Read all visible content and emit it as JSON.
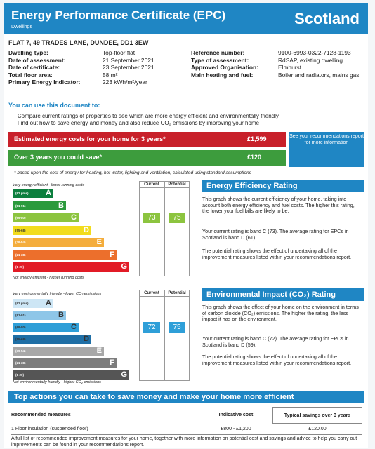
{
  "header": {
    "title": "Energy Performance Certificate (EPC)",
    "subtitle": "Dwellings",
    "country": "Scotland"
  },
  "address": "FLAT 7, 49 TRADES LANE, DUNDEE, DD1 3EW",
  "details_left": [
    {
      "label": "Dwelling type:",
      "value": "Top-floor flat"
    },
    {
      "label": "Date of assessment:",
      "value": "21 September 2021"
    },
    {
      "label": "Date of certificate:",
      "value": "23 September 2021"
    },
    {
      "label": "Total floor area:",
      "value": "58 m²"
    },
    {
      "label": "Primary Energy Indicator:",
      "value": "223 kWh/m²/year"
    }
  ],
  "details_right": [
    {
      "label": "Reference number:",
      "value": "9100-6993-0322-7128-1193"
    },
    {
      "label": "Type of assessment:",
      "value": "RdSAP, existing dwelling"
    },
    {
      "label": "Approved Organisation:",
      "value": "Elmhurst"
    },
    {
      "label": "Main heating and fuel:",
      "value": "Boiler and radiators, mains gas"
    }
  ],
  "use_doc": {
    "heading": "You can use this document to:",
    "bullets": [
      "Compare current ratings of properties to see which are more energy efficient and environmentally friendly",
      "Find out how to save energy and money and also reduce CO₂ emissions by improving your home"
    ]
  },
  "costs": {
    "estimated_label": "Estimated energy costs for your home for 3 years*",
    "estimated_value": "£1,599",
    "save_label": "Over 3 years you could save*",
    "save_value": "£120",
    "see_box": "See your recommendations report for more information",
    "basis": "* based upon the cost of energy for heating, hot water, lighting and ventilation, calculated using standard assumptions"
  },
  "colors": {
    "brand": "#1f86c4",
    "red": "#c8202a",
    "green": "#3d9c3d"
  },
  "efficiency": {
    "top_text": "Very energy efficient - lower running costs",
    "bottom_text": "Not energy efficient - higher running costs",
    "col_current": "Current",
    "col_potential": "Potential",
    "current": "73",
    "potential": "75",
    "current_band": "C",
    "potential_band": "C",
    "bands": [
      {
        "range": "(92 plus)",
        "letter": "A",
        "color": "#0c7f3e"
      },
      {
        "range": "(81-91)",
        "letter": "B",
        "color": "#2b9a3c"
      },
      {
        "range": "(69-80)",
        "letter": "C",
        "color": "#8cc43f"
      },
      {
        "range": "(55-68)",
        "letter": "D",
        "color": "#f2dc1d"
      },
      {
        "range": "(39-54)",
        "letter": "E",
        "color": "#f4ad3c"
      },
      {
        "range": "(21-38)",
        "letter": "F",
        "color": "#ec6f2c"
      },
      {
        "range": "(1-20)",
        "letter": "G",
        "color": "#e21b26"
      }
    ]
  },
  "environment": {
    "top_text": "Very environmentally friendly - lower CO₂ emissions",
    "bottom_text": "Not environmentally friendly - higher CO₂ emissions",
    "col_current": "Current",
    "col_potential": "Potential",
    "current": "72",
    "potential": "75",
    "current_band": "C",
    "potential_band": "C",
    "bands": [
      {
        "range": "(92 plus)",
        "letter": "A",
        "color": "#cde6f5"
      },
      {
        "range": "(81-91)",
        "letter": "B",
        "color": "#8ec6e8"
      },
      {
        "range": "(69-80)",
        "letter": "C",
        "color": "#2f9fd8"
      },
      {
        "range": "(55-68)",
        "letter": "D",
        "color": "#1f6fa6"
      },
      {
        "range": "(39-54)",
        "letter": "E",
        "color": "#a8a8a8"
      },
      {
        "range": "(21-38)",
        "letter": "F",
        "color": "#7d7d7d"
      },
      {
        "range": "(1-20)",
        "letter": "G",
        "color": "#555555"
      }
    ]
  },
  "eer_panel": {
    "title": "Energy Efficiency Rating",
    "p1": "This graph shows the current efficiency of your home, taking into account both energy efficiency and fuel costs. The higher this rating, the lower your fuel bills are likely to be.",
    "p2": "Your current rating is band C (73). The average rating for EPCs in Scotland is band D (61).",
    "p3": "The potential rating shows the effect of undertaking all of the improvement measures listed within your recommendations report."
  },
  "eir_panel": {
    "title": "Environmental Impact (CO₂) Rating",
    "p1": "This graph shows the effect of your home on the environment in terms of carbon dioxide (CO₂) emissions. The higher the rating, the less impact it has on the environment.",
    "p2": "Your current rating is band C (72). The average rating for EPCs in Scotland is band D (59).",
    "p3": "The potential rating shows the effect of undertaking all of the improvement measures listed within your recommendations report."
  },
  "actions": {
    "title": "Top actions you can take to save money and make your home more efficient",
    "col_measures": "Recommended measures",
    "col_cost": "Indicative cost",
    "col_savings": "Typical savings over 3 years",
    "rows": [
      {
        "measure": "1  Floor insulation (suspended floor)",
        "cost": "£800 - £1,200",
        "savings": "£120.00"
      }
    ],
    "footnote": "A full list of recommended improvement measures for your home, together with more information on potential cost and savings and advice to help you carry out improvements can be found in your recommendations report."
  }
}
